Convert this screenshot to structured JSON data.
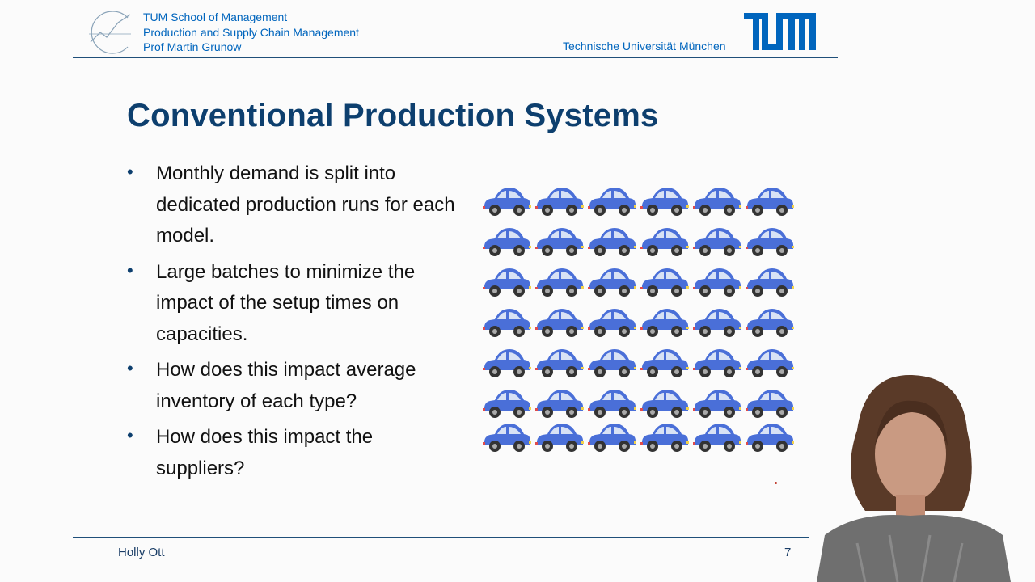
{
  "header": {
    "line1": "TUM School of Management",
    "line2": "Production and Supply Chain Management",
    "line3": "Prof Martin Grunow",
    "university": "Technische Universität München",
    "logo_text": "TUM"
  },
  "slide": {
    "title": "Conventional Production Systems",
    "bullets": [
      "Monthly demand is split into dedicated production runs for each model.",
      "Large batches to minimize the impact of the setup times on capacities.",
      "How does this impact average inventory of each type?",
      "How does this impact the suppliers?"
    ]
  },
  "figure": {
    "icon": "car-icon",
    "rows": 7,
    "cols": 6,
    "color": "#4a6fd8"
  },
  "footer": {
    "presenter": "Holly Ott",
    "page": "7"
  },
  "colors": {
    "accent": "#0065bd",
    "title": "#0d3f6e"
  }
}
